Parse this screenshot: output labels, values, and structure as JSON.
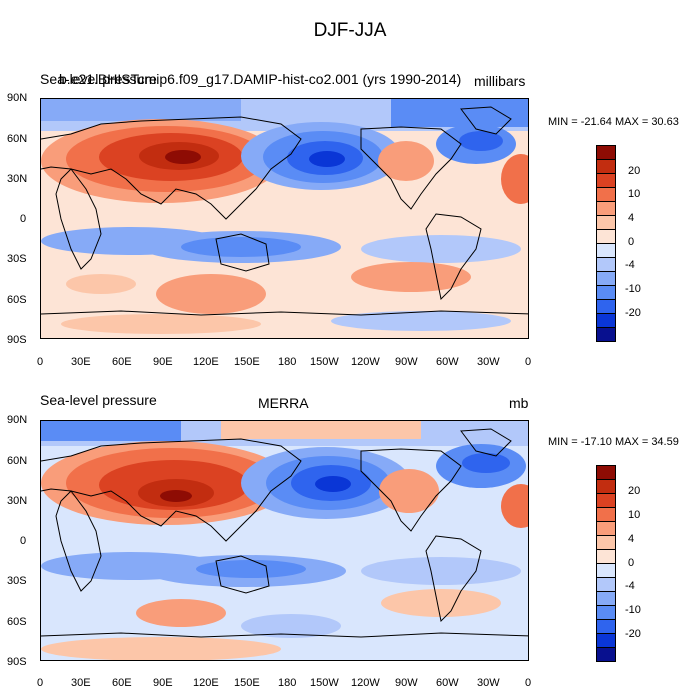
{
  "main_title": "DJF-JJA",
  "colors": {
    "ocean_pos_weak": "#fde0d2",
    "land_line": "#000000"
  },
  "colorbar": {
    "colors": [
      "#08108f",
      "#0a36d6",
      "#2f64ee",
      "#5a8cf5",
      "#86aaf7",
      "#b2c8fa",
      "#d9e6fd",
      "#fde4d6",
      "#fcc6a9",
      "#f99d7a",
      "#f1704a",
      "#db4222",
      "#c22d10",
      "#8e0c04"
    ],
    "labels": [
      "20",
      "10",
      "4",
      "0",
      "-4",
      "-10",
      "-20"
    ]
  },
  "panels": [
    {
      "left_title": "Sea-level pressure",
      "center_title": "b.e21.BHISTcmip6.f09_g17.DAMIP-hist-co2.001 (yrs 1990-2014)",
      "right_title": "millibars",
      "minmax": "MIN = -21.64 MAX =  30.63"
    },
    {
      "left_title": "Sea-level pressure",
      "center_title": "MERRA",
      "right_title": "mb",
      "minmax": "MIN = -17.10 MAX =  34.59"
    }
  ],
  "axes": {
    "lon_ticks": [
      "0",
      "30E",
      "60E",
      "90E",
      "120E",
      "150E",
      "180",
      "150W",
      "120W",
      "90W",
      "60W",
      "30W",
      "0"
    ],
    "lat_ticks": [
      "90N",
      "60N",
      "30N",
      "0",
      "30S",
      "60S",
      "90S"
    ]
  }
}
